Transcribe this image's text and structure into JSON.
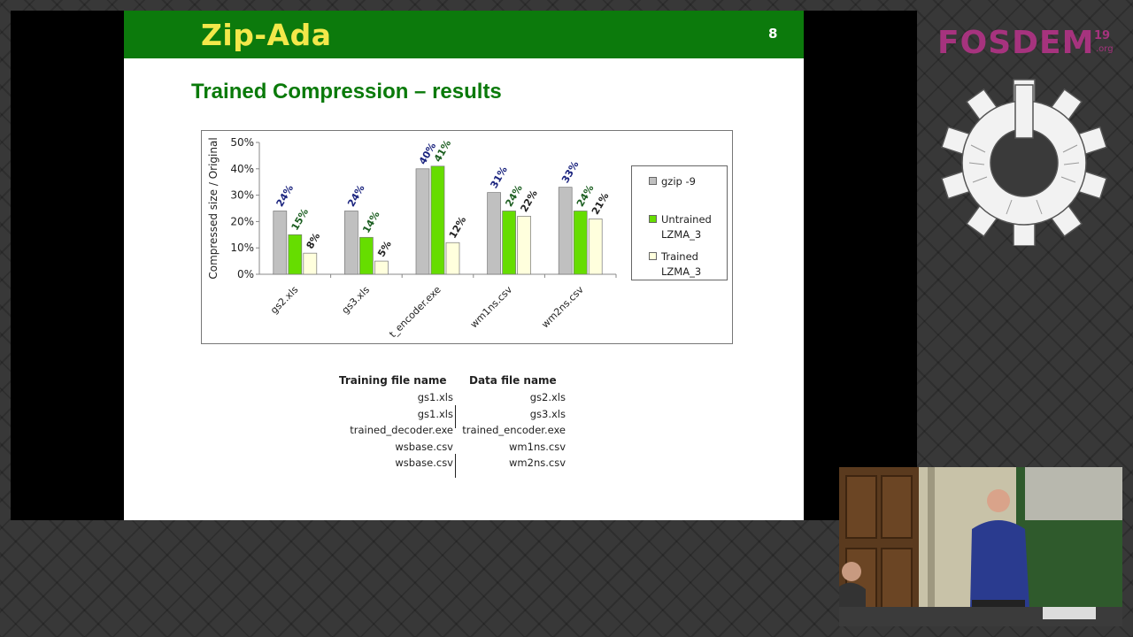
{
  "slide": {
    "brand": "Zip-Ada",
    "number": "8",
    "title": "Trained Compression – results"
  },
  "chart_data": {
    "type": "bar",
    "ylabel": "Compressed size / Original",
    "ylim": [
      0,
      50
    ],
    "yticks": [
      "0%",
      "10%",
      "20%",
      "30%",
      "40%",
      "50%"
    ],
    "categories": [
      "gs2.xls",
      "gs3.xls",
      "t_encoder.exe",
      "wm1ns.csv",
      "wm2ns.csv"
    ],
    "series": [
      {
        "name": "gzip -9",
        "values": [
          24,
          24,
          40,
          31,
          33
        ],
        "labels": [
          "24%",
          "24%",
          "40%",
          "31%",
          "33%"
        ],
        "color": "#c0c0c0",
        "label_color": "#1a237e"
      },
      {
        "name": "Untrained LZMA_3",
        "values": [
          15,
          14,
          41,
          24,
          24
        ],
        "labels": [
          "15%",
          "14%",
          "41%",
          "24%",
          "24%"
        ],
        "color": "#66dd00",
        "label_color": "#1b5e20"
      },
      {
        "name": "Trained LZMA_3",
        "values": [
          8,
          5,
          12,
          22,
          21
        ],
        "labels": [
          "8%",
          "5%",
          "12%",
          "22%",
          "21%"
        ],
        "color": "#ffffdd",
        "label_color": "#222222"
      }
    ],
    "legend": [
      "gzip -9",
      "Untrained LZMA_3",
      "Trained LZMA_3"
    ],
    "legend_position": "right",
    "grid": false
  },
  "file_table": {
    "headers": [
      "Training file name",
      "Data file name"
    ],
    "rows": [
      [
        "gs1.xls",
        "gs2.xls"
      ],
      [
        "gs1.xls",
        "gs3.xls"
      ],
      [
        "trained_decoder.exe",
        "trained_encoder.exe"
      ],
      [
        "wsbase.csv",
        "wm1ns.csv"
      ],
      [
        "wsbase.csv",
        "wm2ns.csv"
      ]
    ]
  },
  "fosdem": {
    "name": "FOSDEM",
    "year": "19",
    "tld": ".org",
    "color": "#a6337e"
  },
  "icons": {
    "gear": "fosdem-gear-icon"
  }
}
